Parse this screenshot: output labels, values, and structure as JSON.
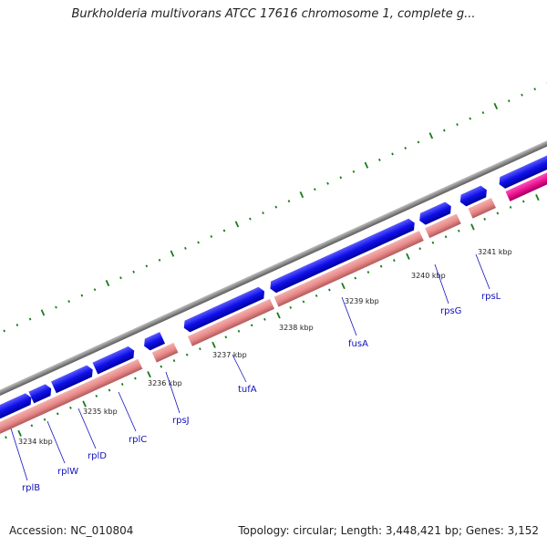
{
  "title": "Burkholderia multivorans ATCC 17616 chromosome 1, complete g...",
  "footer": {
    "accession": "Accession: NC_010804",
    "summary": "Topology: circular; Length: 3,448,421 bp; Genes: 3,152"
  },
  "colors": {
    "forward_gene": "#1010e8",
    "reverse_gene": "#e88888",
    "rna_gene": "#e8108c",
    "backbone": "#8c8c8c",
    "tick": "#1a7a1a",
    "label": "#1010c0"
  },
  "kbp_labels": [
    "3234 kbp",
    "3235 kbp",
    "3236 kbp",
    "3237 kbp",
    "3238 kbp",
    "3239 kbp",
    "3240 kbp",
    "3241 kbp"
  ],
  "gene_labels": [
    "rplB",
    "rplW",
    "rplD",
    "rplC",
    "rpsJ",
    "tufA",
    "fusA",
    "rpsG",
    "rpsL"
  ]
}
